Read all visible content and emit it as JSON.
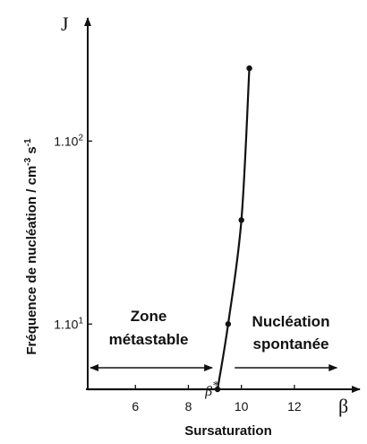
{
  "chart_data": {
    "type": "line",
    "xlabel": "Sursaturation",
    "x_symbol": "β",
    "y_symbol": "J",
    "ylabel": {
      "main": "Fréquence de nucléation / cm",
      "exp1": "-3",
      "mid": " s",
      "exp2": "-1"
    },
    "x_ticks": [
      {
        "value": 6,
        "label": "6"
      },
      {
        "value": 8,
        "label": "8"
      },
      {
        "value": 10,
        "label": "10"
      },
      {
        "value": 12,
        "label": "12"
      }
    ],
    "y_ticks": [
      {
        "value": 10,
        "label_base": "1.10",
        "label_exp": "1"
      },
      {
        "value": 100,
        "label_base": "1.10",
        "label_exp": "2"
      }
    ],
    "y_scale": "log",
    "xlim": [
      4.2,
      14.2
    ],
    "ylim": [
      4.4,
      450
    ],
    "series": [
      {
        "points": [
          [
            4.2,
            4.4
          ],
          [
            9.1,
            4.4
          ],
          [
            9.5,
            10
          ],
          [
            10.0,
            37
          ],
          [
            10.3,
            250
          ]
        ],
        "markers": [
          [
            9.1,
            4.4
          ],
          [
            9.5,
            10
          ],
          [
            10.0,
            37
          ],
          [
            10.3,
            250
          ]
        ]
      }
    ],
    "annotations": {
      "metastable": {
        "line1": "Zone",
        "line2": "métastable",
        "x_from": 4.3,
        "x_to": 8.9
      },
      "spontaneous": {
        "line1": "Nucléation",
        "line2": "spontanée",
        "x_from": 9.75,
        "x_to": 13.6
      },
      "beta_star": {
        "symbol": "β",
        "star": "*",
        "value": 9.1
      }
    }
  }
}
